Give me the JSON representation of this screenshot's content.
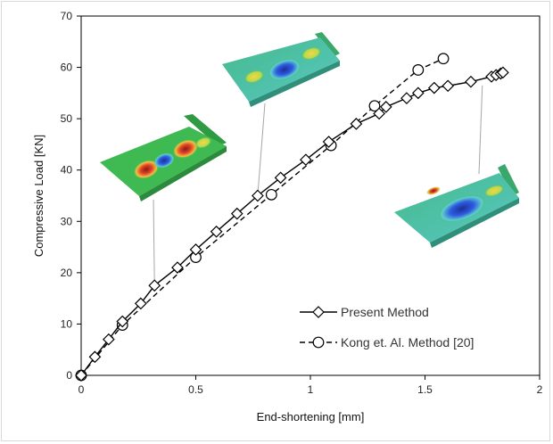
{
  "chart_data": {
    "type": "line",
    "title": "",
    "xlabel": "End-shortening [mm]",
    "ylabel": "Compressive Load [KN]",
    "xlim": [
      0,
      2
    ],
    "ylim": [
      0,
      70
    ],
    "x_ticks": [
      "0",
      "0.5",
      "1",
      "1.5",
      "2"
    ],
    "y_ticks": [
      "0",
      "10",
      "20",
      "30",
      "40",
      "50",
      "60",
      "70"
    ],
    "grid": false,
    "legend_position": "bottom-right",
    "series": [
      {
        "name": "Present Method",
        "marker": "diamond",
        "line_style": "solid",
        "color": "#000000",
        "points": [
          [
            0,
            0
          ],
          [
            0.06,
            3.6
          ],
          [
            0.12,
            7.0
          ],
          [
            0.18,
            10.5
          ],
          [
            0.26,
            14.0
          ],
          [
            0.32,
            17.5
          ],
          [
            0.42,
            21.0
          ],
          [
            0.5,
            24.5
          ],
          [
            0.59,
            28.0
          ],
          [
            0.68,
            31.5
          ],
          [
            0.77,
            35.0
          ],
          [
            0.87,
            38.5
          ],
          [
            0.98,
            42.0
          ],
          [
            1.08,
            45.5
          ],
          [
            1.2,
            49.0
          ],
          [
            1.3,
            51.0
          ],
          [
            1.33,
            52.3
          ],
          [
            1.42,
            54.0
          ],
          [
            1.47,
            55.0
          ],
          [
            1.54,
            56.0
          ],
          [
            1.6,
            56.4
          ],
          [
            1.7,
            57.2
          ],
          [
            1.79,
            58.2
          ],
          [
            1.81,
            58.5
          ],
          [
            1.83,
            58.8
          ],
          [
            1.84,
            59.0
          ]
        ]
      },
      {
        "name": "Kong et. Al. Method [20]",
        "marker": "circle",
        "line_style": "dashed",
        "color": "#000000",
        "points": [
          [
            0,
            0
          ],
          [
            0.18,
            9.8
          ],
          [
            0.5,
            23.0
          ],
          [
            0.83,
            35.2
          ],
          [
            1.09,
            44.8
          ],
          [
            1.28,
            52.5
          ],
          [
            1.47,
            59.5
          ],
          [
            1.58,
            61.7
          ]
        ]
      }
    ],
    "annotations": [
      {
        "name": "inset-left",
        "anchor_x": 0.32,
        "anchor_y": 17.5
      },
      {
        "name": "inset-top",
        "anchor_x": 0.77,
        "anchor_y": 35.0
      },
      {
        "name": "inset-right",
        "anchor_x": 1.75,
        "anchor_y": 56.5
      }
    ]
  },
  "colors": {
    "plate_green": "#3fba53",
    "plate_dark": "#2f9a44",
    "hot": "#d94b2a",
    "warm": "#f0c23e",
    "cold": "#2e4fcf",
    "cyan": "#4cc7c0"
  }
}
